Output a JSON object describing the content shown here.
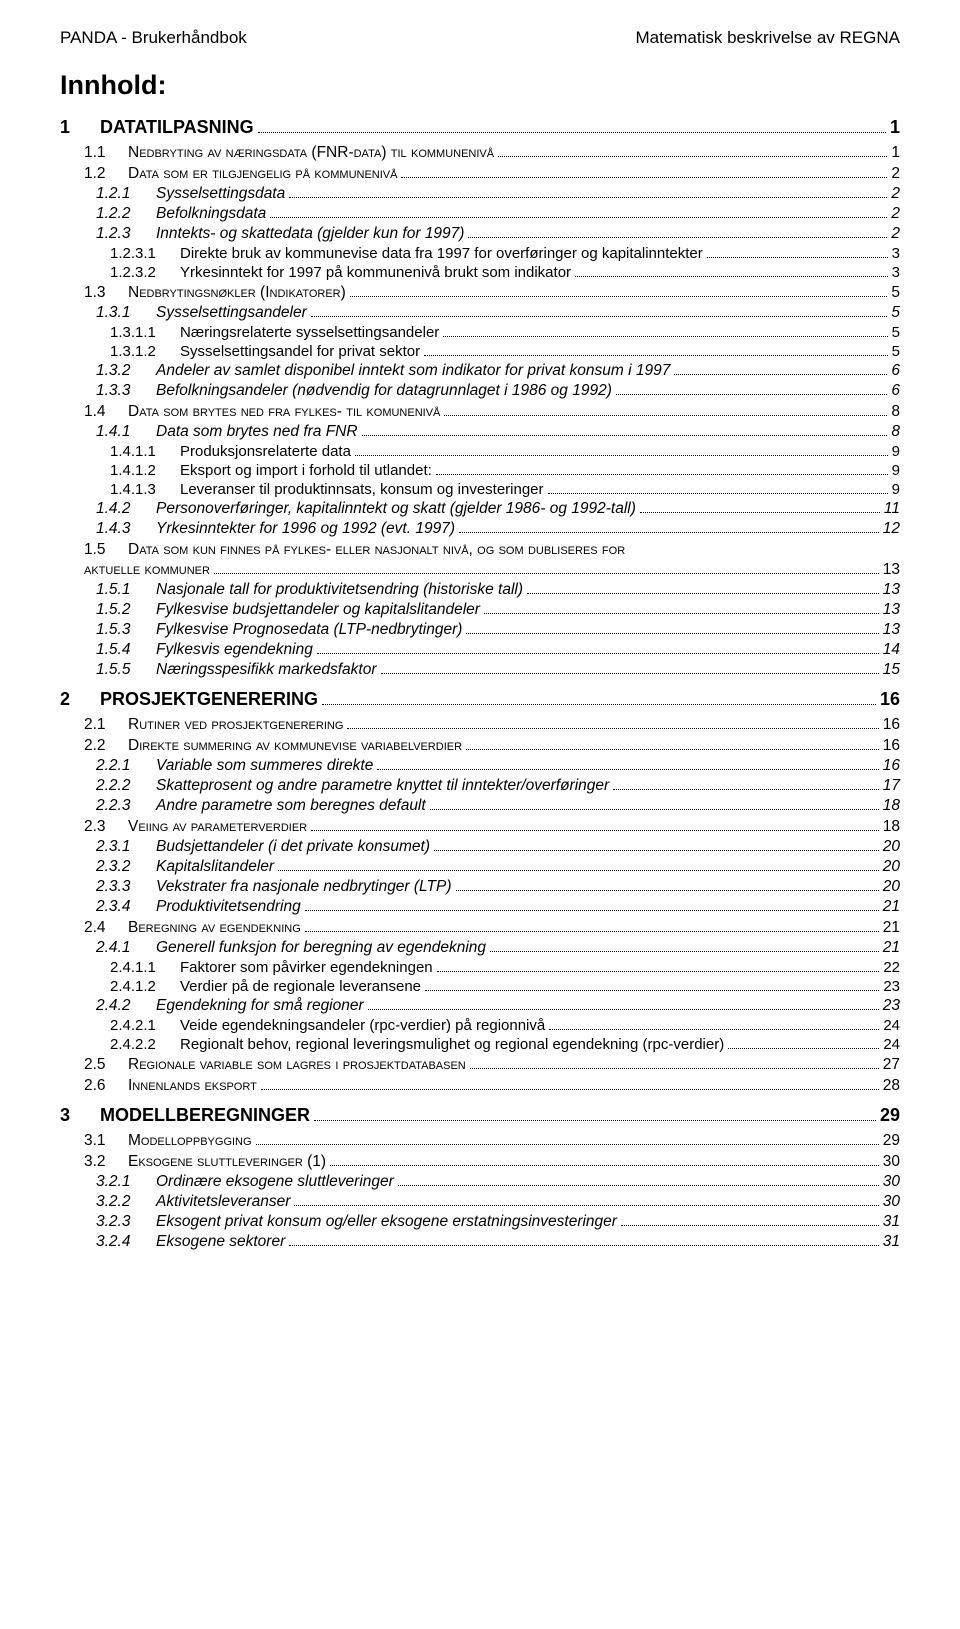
{
  "header": {
    "left": "PANDA - Brukerhåndbok",
    "right": "Matematisk beskrivelse av REGNA"
  },
  "title": "Innhold:",
  "toc": [
    {
      "level": 0,
      "num": "1",
      "label": "DATATILPASNING",
      "page": "1"
    },
    {
      "level": 1,
      "num": "1.1",
      "label": "Nedbryting av næringsdata (FNR-data) til kommunenivå",
      "page": "1",
      "sc": true
    },
    {
      "level": 1,
      "num": "1.2",
      "label": "Data som er tilgjengelig på kommunenivå",
      "page": "2",
      "sc": true
    },
    {
      "level": 2,
      "num": "1.2.1",
      "label": "Sysselsettingsdata",
      "page": "2"
    },
    {
      "level": 2,
      "num": "1.2.2",
      "label": "Befolkningsdata",
      "page": "2"
    },
    {
      "level": 2,
      "num": "1.2.3",
      "label": "Inntekts- og skattedata (gjelder kun for 1997)",
      "page": "2"
    },
    {
      "level": 3,
      "num": "1.2.3.1",
      "label": "Direkte bruk av kommunevise data fra 1997 for overføringer og kapitalinntekter",
      "page": "3"
    },
    {
      "level": 3,
      "num": "1.2.3.2",
      "label": "Yrkesinntekt for 1997 på kommunenivå brukt som indikator",
      "page": "3"
    },
    {
      "level": 1,
      "num": "1.3",
      "label": "Nedbrytingsnøkler (Indikatorer)",
      "page": "5",
      "sc": true
    },
    {
      "level": 2,
      "num": "1.3.1",
      "label": "Sysselsettingsandeler",
      "page": "5"
    },
    {
      "level": 3,
      "num": "1.3.1.1",
      "label": "Næringsrelaterte sysselsettingsandeler",
      "page": "5"
    },
    {
      "level": 3,
      "num": "1.3.1.2",
      "label": "Sysselsettingsandel for privat sektor",
      "page": "5"
    },
    {
      "level": 2,
      "num": "1.3.2",
      "label": "Andeler av samlet disponibel inntekt som indikator for privat konsum i 1997",
      "page": "6"
    },
    {
      "level": 2,
      "num": "1.3.3",
      "label": "Befolkningsandeler (nødvendig for datagrunnlaget i 1986 og 1992)",
      "page": "6"
    },
    {
      "level": 1,
      "num": "1.4",
      "label": "Data som brytes ned fra fylkes- til komunenivå",
      "page": "8",
      "sc": true
    },
    {
      "level": 2,
      "num": "1.4.1",
      "label": "Data som brytes ned fra FNR",
      "page": "8"
    },
    {
      "level": 3,
      "num": "1.4.1.1",
      "label": "Produksjonsrelaterte data",
      "page": "9"
    },
    {
      "level": 3,
      "num": "1.4.1.2",
      "label": "Eksport og import i forhold til utlandet:",
      "page": "9"
    },
    {
      "level": 3,
      "num": "1.4.1.3",
      "label": "Leveranser til produktinnsats, konsum og investeringer",
      "page": "9"
    },
    {
      "level": 2,
      "num": "1.4.2",
      "label": "Personoverføringer, kapitalinntekt og skatt (gjelder 1986- og 1992-tall)",
      "page": "11"
    },
    {
      "level": 2,
      "num": "1.4.3",
      "label": "Yrkesinntekter for 1996 og 1992 (evt. 1997)",
      "page": "12"
    },
    {
      "level": 1,
      "num": "1.5",
      "label": "Data som kun finnes på fylkes- eller nasjonalt nivå, og som dubliseres for",
      "page": "",
      "sc": true,
      "nodots": true
    },
    {
      "level": 1,
      "num": "",
      "label": "aktuelle kommuner",
      "page": "13",
      "sc": true,
      "cont": true
    },
    {
      "level": 2,
      "num": "1.5.1",
      "label": "Nasjonale tall for produktivitetsendring (historiske tall)",
      "page": "13"
    },
    {
      "level": 2,
      "num": "1.5.2",
      "label": "Fylkesvise budsjettandeler og kapitalslitandeler",
      "page": "13"
    },
    {
      "level": 2,
      "num": "1.5.3",
      "label": "Fylkesvise Prognosedata (LTP-nedbrytinger)",
      "page": "13"
    },
    {
      "level": 2,
      "num": "1.5.4",
      "label": "Fylkesvis egendekning",
      "page": "14"
    },
    {
      "level": 2,
      "num": "1.5.5",
      "label": "Næringsspesifikk markedsfaktor",
      "page": "15"
    },
    {
      "level": 0,
      "num": "2",
      "label": "PROSJEKTGENERERING",
      "page": "16"
    },
    {
      "level": 1,
      "num": "2.1",
      "label": "Rutiner ved prosjektgenerering",
      "page": "16",
      "sc": true
    },
    {
      "level": 1,
      "num": "2.2",
      "label": "Direkte summering av kommunevise variabelverdier",
      "page": "16",
      "sc": true
    },
    {
      "level": 2,
      "num": "2.2.1",
      "label": "Variable som summeres direkte",
      "page": "16"
    },
    {
      "level": 2,
      "num": "2.2.2",
      "label": "Skatteprosent og andre parametre knyttet til inntekter/overføringer",
      "page": "17"
    },
    {
      "level": 2,
      "num": "2.2.3",
      "label": "Andre parametre som beregnes default",
      "page": "18"
    },
    {
      "level": 1,
      "num": "2.3",
      "label": "Veiing av parameterverdier",
      "page": "18",
      "sc": true
    },
    {
      "level": 2,
      "num": "2.3.1",
      "label": "Budsjettandeler (i det private konsumet)",
      "page": "20"
    },
    {
      "level": 2,
      "num": "2.3.2",
      "label": "Kapitalslitandeler",
      "page": "20"
    },
    {
      "level": 2,
      "num": "2.3.3",
      "label": "Vekstrater fra nasjonale nedbrytinger (LTP)",
      "page": "20"
    },
    {
      "level": 2,
      "num": "2.3.4",
      "label": "Produktivitetsendring",
      "page": "21"
    },
    {
      "level": 1,
      "num": "2.4",
      "label": "Beregning av egendekning",
      "page": "21",
      "sc": true
    },
    {
      "level": 2,
      "num": "2.4.1",
      "label": "Generell funksjon for beregning av egendekning",
      "page": "21"
    },
    {
      "level": 3,
      "num": "2.4.1.1",
      "label": "Faktorer som påvirker egendekningen",
      "page": "22"
    },
    {
      "level": 3,
      "num": "2.4.1.2",
      "label": "Verdier på de regionale leveransene",
      "page": "23"
    },
    {
      "level": 2,
      "num": "2.4.2",
      "label": "Egendekning for små regioner",
      "page": "23"
    },
    {
      "level": 3,
      "num": "2.4.2.1",
      "label": "Veide egendekningsandeler (rpc-verdier) på regionnivå",
      "page": "24"
    },
    {
      "level": 3,
      "num": "2.4.2.2",
      "label": "Regionalt behov, regional leveringsmulighet og regional egendekning (rpc-verdier)",
      "page": "24"
    },
    {
      "level": 1,
      "num": "2.5",
      "label": "Regionale variable som lagres i prosjektdatabasen",
      "page": "27",
      "sc": true
    },
    {
      "level": 1,
      "num": "2.6",
      "label": "Innenlands eksport",
      "page": "28",
      "sc": true
    },
    {
      "level": 0,
      "num": "3",
      "label": "MODELLBEREGNINGER",
      "page": "29"
    },
    {
      "level": 1,
      "num": "3.1",
      "label": "Modelloppbygging",
      "page": "29",
      "sc": true
    },
    {
      "level": 1,
      "num": "3.2",
      "label": "Eksogene sluttleveringer (1)",
      "page": "30",
      "sc": true
    },
    {
      "level": 2,
      "num": "3.2.1",
      "label": "Ordinære eksogene sluttleveringer",
      "page": "30"
    },
    {
      "level": 2,
      "num": "3.2.2",
      "label": "Aktivitetsleveranser",
      "page": "30"
    },
    {
      "level": 2,
      "num": "3.2.3",
      "label": "Eksogent privat konsum og/eller eksogene erstatningsinvesteringer",
      "page": "31"
    },
    {
      "level": 2,
      "num": "3.2.4",
      "label": "Eksogene sektorer",
      "page": "31"
    }
  ]
}
